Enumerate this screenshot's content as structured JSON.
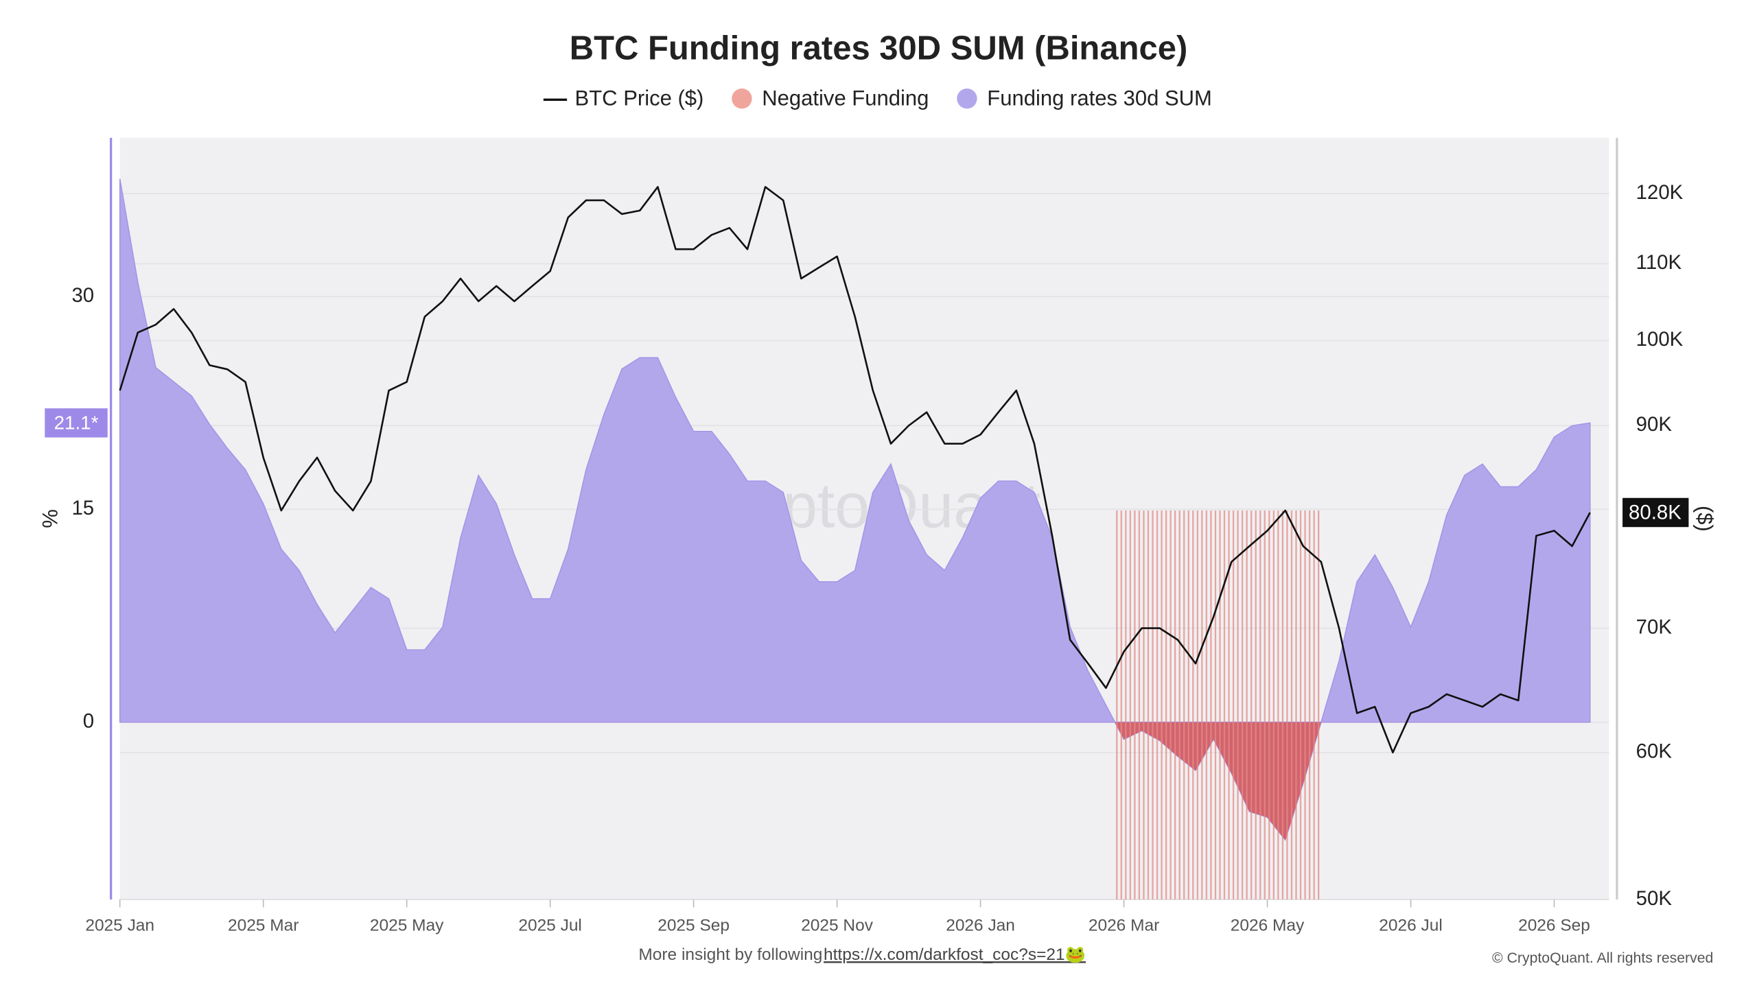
{
  "chart_data": {
    "type": "line",
    "title": "BTC Funding rates 30D SUM (Binance)",
    "watermark": "CryptoQuant",
    "ylabel": "%",
    "y2label": "($)",
    "footer": {
      "text": "More insight by following",
      "link": "https://x.com/darkfost_coc?s=21🐸"
    },
    "copyright": "© CryptoQuant. All rights reserved",
    "categories": [
      "2025 Jan",
      null,
      null,
      null,
      null,
      null,
      null,
      null,
      "2025 Mar",
      null,
      null,
      null,
      null,
      null,
      null,
      null,
      "2025 May",
      null,
      null,
      null,
      null,
      null,
      null,
      null,
      "2025 Jul",
      null,
      null,
      null,
      null,
      null,
      null,
      null,
      "2025 Sep",
      null,
      null,
      null,
      null,
      null,
      null,
      null,
      "2025 Nov",
      null,
      null,
      null,
      null,
      null,
      null,
      null,
      "2026 Jan",
      null,
      null,
      null,
      null,
      null,
      null,
      null,
      "2026 Mar",
      null,
      null,
      null,
      null,
      null,
      null,
      null,
      "2026 May",
      null,
      null,
      null,
      null,
      null,
      null,
      null,
      "2026 Jul",
      null,
      null,
      null,
      null,
      null,
      null,
      null,
      "2026 Sep",
      null,
      null
    ],
    "ylim": [
      -12.5,
      41.2
    ],
    "yticks": [
      0,
      15,
      30
    ],
    "y2lim": [
      50000,
      128600
    ],
    "y2scale": "log",
    "y2ticks": [
      {
        "value": 50000,
        "label": "50K"
      },
      {
        "value": 60000,
        "label": "60K"
      },
      {
        "value": 70000,
        "label": "70K"
      },
      {
        "value": 90000,
        "label": "90K"
      },
      {
        "value": 100000,
        "label": "100K"
      },
      {
        "value": 110000,
        "label": "110K"
      },
      {
        "value": 120000,
        "label": "120K"
      }
    ],
    "grid": true,
    "negative_fill": {
      "name": "Negative Funding",
      "color": "#f0a59c",
      "fill": "#d9534f"
    },
    "series": [
      {
        "name": "BTC Price ($)",
        "type": "line",
        "axis": "y2",
        "color": "#111111",
        "values": [
          94000,
          101000,
          102000,
          104000,
          101000,
          97000,
          96500,
          95000,
          86500,
          81000,
          84000,
          86500,
          83000,
          81000,
          84000,
          94000,
          95000,
          103000,
          105000,
          108000,
          105000,
          107000,
          105000,
          107000,
          109000,
          116500,
          119000,
          119000,
          117000,
          117500,
          121000,
          112000,
          112000,
          114000,
          115000,
          112000,
          121000,
          119000,
          108000,
          109500,
          111000,
          103000,
          94000,
          88000,
          90000,
          91500,
          88000,
          88000,
          89000,
          91500,
          94000,
          88000,
          78500,
          69000,
          67000,
          65000,
          68000,
          70000,
          70000,
          69000,
          67000,
          71000,
          76000,
          77500,
          79000,
          81000,
          77500,
          76000,
          70000,
          63000,
          63500,
          60000,
          63000,
          63500,
          64500,
          64000,
          63500,
          64500,
          64000,
          78500,
          79000,
          77500,
          80800
        ],
        "last_label": "80.8K"
      },
      {
        "name": "Funding rates 30d SUM",
        "type": "area",
        "color": "#b3a7ec",
        "values": [
          38.3,
          31,
          25,
          24,
          23,
          21,
          19.3,
          17.8,
          15.4,
          12.2,
          10.7,
          8.3,
          6.3,
          7.9,
          9.5,
          8.7,
          5.1,
          5.1,
          6.7,
          13,
          17.4,
          15.4,
          11.8,
          8.7,
          8.7,
          12.2,
          17.8,
          21.7,
          24.9,
          25.7,
          25.7,
          22.9,
          20.5,
          20.5,
          18.9,
          17,
          17,
          16.2,
          11.4,
          9.9,
          9.9,
          10.7,
          16.2,
          18.2,
          14.2,
          11.8,
          10.7,
          13,
          15.8,
          17,
          17,
          16.2,
          13,
          6.7,
          3.6,
          1.2,
          -1.2,
          -0.6,
          -1.3,
          -2.4,
          -3.4,
          -1.2,
          -3.6,
          -6.3,
          -6.7,
          -8.3,
          -4.3,
          0,
          4.3,
          9.9,
          11.8,
          9.5,
          6.7,
          9.9,
          14.6,
          17.4,
          18.2,
          16.6,
          16.6,
          17.8,
          20.1,
          20.9,
          21.1
        ],
        "last_label": "21.1*"
      }
    ]
  }
}
